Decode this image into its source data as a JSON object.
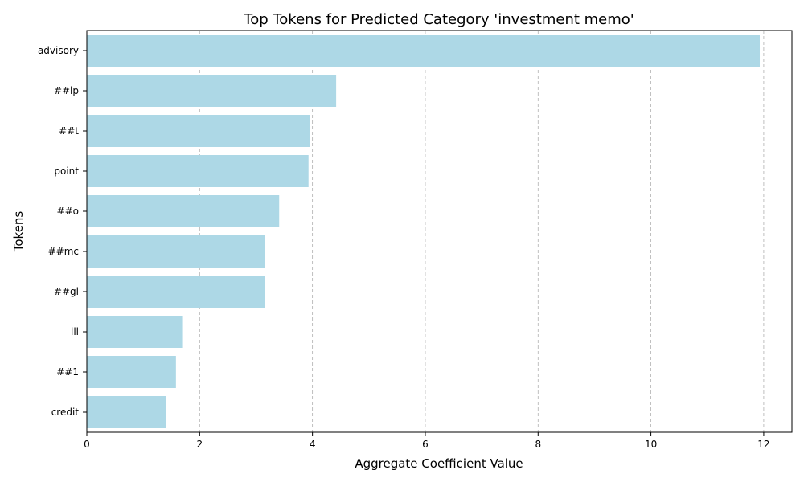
{
  "chart_data": {
    "type": "bar",
    "orientation": "horizontal",
    "title": "Top Tokens for Predicted Category 'investment memo'",
    "xlabel": "Aggregate Coefficient Value",
    "ylabel": "Tokens",
    "categories": [
      "advisory",
      "##lp",
      "##t",
      "point",
      "##o",
      "##mc",
      "##gl",
      "ill",
      "##1",
      "credit"
    ],
    "values": [
      11.93,
      4.42,
      3.95,
      3.93,
      3.41,
      3.15,
      3.15,
      1.69,
      1.58,
      1.41
    ],
    "xlim": [
      0,
      12.5
    ],
    "xticks": [
      0,
      2,
      4,
      6,
      8,
      10,
      12
    ],
    "xtick_labels": [
      "0",
      "2",
      "4",
      "6",
      "8",
      "10",
      "12"
    ],
    "grid": "x-dashed",
    "bar_color": "#add8e6",
    "grid_color": "#b0b0b0",
    "legend": "none"
  }
}
